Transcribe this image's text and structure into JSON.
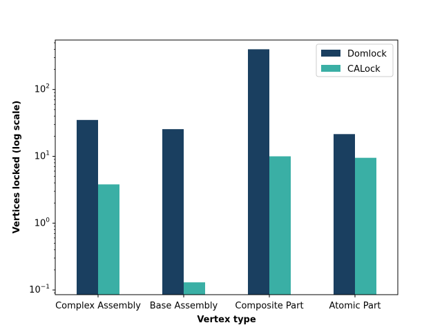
{
  "chart_data": {
    "type": "bar",
    "title": "",
    "xlabel": "Vertex type",
    "ylabel": "Vertices locked (log scale)",
    "yscale": "log",
    "ylim": [
      0.085,
      550
    ],
    "categories": [
      "Complex Assembly",
      "Base Assembly",
      "Composite Part",
      "Atomic Part"
    ],
    "series": [
      {
        "name": "Domlock",
        "color": "#1a3f60",
        "values": [
          35,
          25.5,
          400,
          21.5
        ]
      },
      {
        "name": "CALock",
        "color": "#3aafa5",
        "values": [
          3.8,
          0.13,
          10,
          9.5
        ]
      }
    ],
    "y_ticks": [
      {
        "value": 0.1,
        "base": "10",
        "exp": "−1"
      },
      {
        "value": 1,
        "base": "10",
        "exp": "0"
      },
      {
        "value": 10,
        "base": "10",
        "exp": "1"
      },
      {
        "value": 100,
        "base": "10",
        "exp": "2"
      }
    ],
    "grid": false,
    "legend_position": "top-right"
  }
}
